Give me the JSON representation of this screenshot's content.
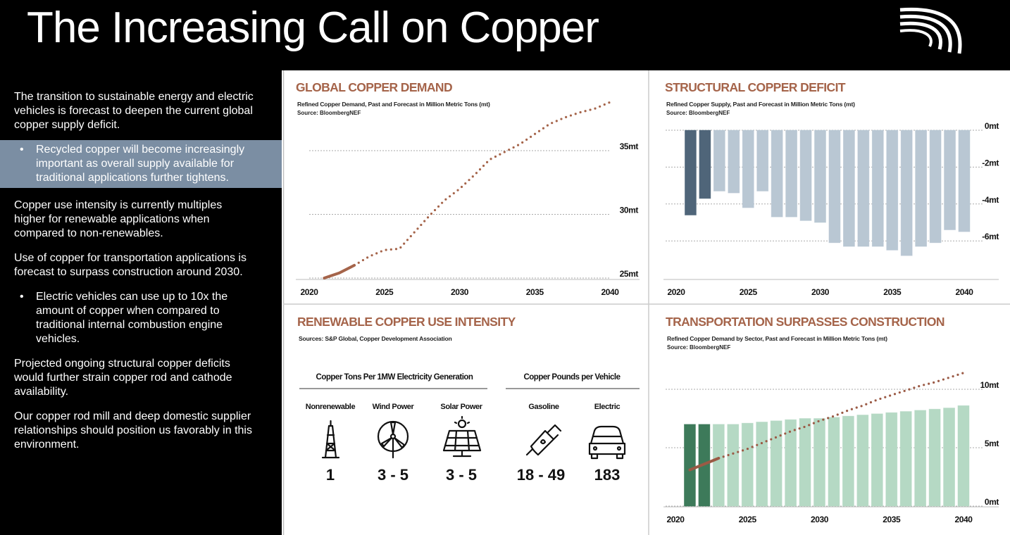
{
  "header": {
    "title": "The Increasing Call on Copper"
  },
  "sidebar": {
    "items": [
      {
        "text": "The transition to sustainable energy and electric vehicles is forecast to deepen the current global copper supply deficit.",
        "bullet": false,
        "highlight": false
      },
      {
        "text": "Recycled copper will become increasingly important as overall supply available for traditional applications further tightens.",
        "bullet": true,
        "highlight": true
      },
      {
        "text": "Copper use intensity is currently multiples higher for renewable applications when compared to non-renewables.",
        "bullet": false,
        "highlight": false
      },
      {
        "text": "Use of copper for transportation applications is forecast to surpass construction around 2030.",
        "bullet": false,
        "highlight": false
      },
      {
        "text": "Electric vehicles can use up to 10x the amount of copper when compared to traditional internal combustion engine vehicles.",
        "bullet": true,
        "highlight": false
      },
      {
        "text": "Projected ongoing structural copper deficits would further strain copper rod and cathode availability.",
        "bullet": false,
        "highlight": false
      },
      {
        "text": "Our copper rod mill and deep domestic supplier relationships should position us favorably in this environment.",
        "bullet": false,
        "highlight": false
      }
    ]
  },
  "intensity": {
    "title": "RENEWABLE COPPER USE INTENSITY",
    "source": "Sources: S&P Global, Copper Development Association",
    "groups": [
      {
        "heading": "Copper Tons Per 1MW Electricity Generation",
        "items": [
          {
            "label": "Nonrenewable",
            "value": 1
          },
          {
            "label": "Wind Power",
            "value": "3 - 5"
          },
          {
            "label": "Solar Power",
            "value": "3 - 5"
          }
        ]
      },
      {
        "heading": "Copper Pounds per Vehicle",
        "items": [
          {
            "label": "Gasoline",
            "value": "18 - 49"
          },
          {
            "label": "Electric",
            "value": 183
          }
        ]
      }
    ]
  },
  "chart_data": [
    {
      "type": "line",
      "title": "GLOBAL COPPER DEMAND",
      "subtitle": "Refined Copper Demand, Past and Forecast in Million Metric Tons (mt)",
      "source": "Source: BloombergNEF",
      "x": [
        2021,
        2022,
        2023,
        2024,
        2025,
        2026,
        2027,
        2028,
        2029,
        2030,
        2031,
        2032,
        2033,
        2034,
        2035,
        2036,
        2037,
        2038,
        2039,
        2040
      ],
      "series": [
        {
          "color": "#a5644a",
          "dash": "solid",
          "values": [
            25.0,
            25.4,
            26.0,
            null,
            null,
            null,
            null,
            null,
            null,
            null,
            null,
            null,
            null,
            null,
            null,
            null,
            null,
            null,
            null,
            null
          ]
        },
        {
          "color": "#a5644a",
          "dash": "dotted",
          "values": [
            null,
            null,
            26.0,
            26.7,
            27.2,
            27.3,
            28.6,
            29.9,
            31.1,
            32.0,
            33.1,
            34.3,
            34.9,
            35.5,
            36.3,
            37.1,
            37.6,
            38.0,
            38.3,
            38.8
          ]
        }
      ],
      "xlim": [
        2020,
        2040
      ],
      "xticks": [
        2020,
        2025,
        2030,
        2035,
        2040
      ],
      "ylim": [
        25,
        39
      ],
      "yticks": [
        {
          "value": 25,
          "label": "25mt"
        },
        {
          "value": 30,
          "label": "30mt"
        },
        {
          "value": 35,
          "label": "35mt"
        }
      ],
      "grid": true
    },
    {
      "type": "bar",
      "title": "STRUCTURAL COPPER DEFICIT",
      "subtitle": "Refined Copper Supply, Past and Forecast in Million Metric Tons (mt)",
      "source": "Source: BloombergNEF",
      "x": [
        2021,
        2022,
        2023,
        2024,
        2025,
        2026,
        2027,
        2028,
        2029,
        2030,
        2031,
        2032,
        2033,
        2034,
        2035,
        2036,
        2037,
        2038,
        2039,
        2040
      ],
      "values": [
        -4.6,
        -3.7,
        -3.3,
        -3.4,
        -4.2,
        -3.3,
        -4.7,
        -4.7,
        -4.9,
        -5.0,
        -6.1,
        -6.3,
        -6.3,
        -6.3,
        -6.5,
        -6.8,
        -6.3,
        -6.1,
        -5.4,
        -5.5
      ],
      "colors": [
        "#4f6579",
        "#4f6579",
        "#b9c7d3",
        "#b9c7d3",
        "#b9c7d3",
        "#b9c7d3",
        "#b9c7d3",
        "#b9c7d3",
        "#b9c7d3",
        "#b9c7d3",
        "#b9c7d3",
        "#b9c7d3",
        "#b9c7d3",
        "#b9c7d3",
        "#b9c7d3",
        "#b9c7d3",
        "#b9c7d3",
        "#b9c7d3",
        "#b9c7d3",
        "#b9c7d3"
      ],
      "xlim": [
        2020,
        2040
      ],
      "xticks": [
        2020,
        2025,
        2030,
        2035,
        2040
      ],
      "ylim": [
        -7,
        0
      ],
      "yticks": [
        {
          "value": 0,
          "label": "0mt"
        },
        {
          "value": -2,
          "label": "-2mt"
        },
        {
          "value": -4,
          "label": "-4mt"
        },
        {
          "value": -6,
          "label": "-6mt"
        }
      ],
      "grid": true
    },
    {
      "type": "bar_line",
      "title": "TRANSPORTATION SURPASSES CONSTRUCTION",
      "subtitle": "Refined Copper Demand by Sector, Past and Forecast in Million Metric Tons (mt)",
      "source": "Source: BloombergNEF",
      "x": [
        2021,
        2022,
        2023,
        2024,
        2025,
        2026,
        2027,
        2028,
        2029,
        2030,
        2031,
        2032,
        2033,
        2034,
        2035,
        2036,
        2037,
        2038,
        2039,
        2040
      ],
      "series": [
        {
          "kind": "bar",
          "values": [
            7.0,
            7.0,
            7.0,
            7.0,
            7.1,
            7.2,
            7.3,
            7.4,
            7.5,
            7.5,
            7.6,
            7.7,
            7.8,
            7.9,
            8.0,
            8.1,
            8.2,
            8.3,
            8.4,
            8.6
          ],
          "colors": [
            "#3d7a5a",
            "#3d7a5a",
            "#b5d9c4",
            "#b5d9c4",
            "#b5d9c4",
            "#b5d9c4",
            "#b5d9c4",
            "#b5d9c4",
            "#b5d9c4",
            "#b5d9c4",
            "#b5d9c4",
            "#b5d9c4",
            "#b5d9c4",
            "#b5d9c4",
            "#b5d9c4",
            "#b5d9c4",
            "#b5d9c4",
            "#b5d9c4",
            "#b5d9c4",
            "#b5d9c4"
          ]
        },
        {
          "kind": "line",
          "color": "#9b5a45",
          "dash": "solid",
          "values": [
            3.1,
            3.6,
            4.1,
            null,
            null,
            null,
            null,
            null,
            null,
            null,
            null,
            null,
            null,
            null,
            null,
            null,
            null,
            null,
            null,
            null
          ]
        },
        {
          "kind": "line",
          "color": "#9b5a45",
          "dash": "dotted",
          "values": [
            null,
            null,
            4.1,
            4.5,
            4.9,
            5.4,
            5.9,
            6.4,
            6.8,
            7.3,
            7.7,
            8.2,
            8.6,
            9.1,
            9.5,
            9.9,
            10.3,
            10.6,
            11.0,
            11.4
          ]
        }
      ],
      "xlim": [
        2020,
        2040
      ],
      "xticks": [
        2020,
        2025,
        2030,
        2035,
        2040
      ],
      "ylim": [
        0,
        12
      ],
      "yticks": [
        {
          "value": 0,
          "label": "0mt"
        },
        {
          "value": 5,
          "label": "5mt"
        },
        {
          "value": 10,
          "label": "10mt"
        }
      ],
      "grid": true
    }
  ]
}
